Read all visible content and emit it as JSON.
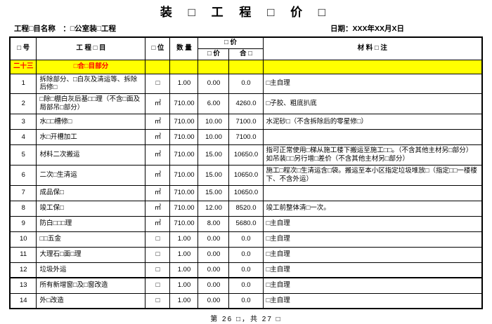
{
  "page": {
    "title": "装 □ 工 程 □ 价 □",
    "project_label": "工程□目名称　：□公室装□工程",
    "date_label": "日期：XXX年XX月X日",
    "footer": "第 26 □，共 27 □"
  },
  "colors": {
    "section_bg": "#FFFF00",
    "section_text": "#FF0000",
    "border": "#000000"
  },
  "table": {
    "headers": {
      "no": "□ 号",
      "item": "工  程  □  目",
      "unit": "□ 位",
      "qty": "数 量",
      "price_group": "□ 价",
      "unit_price": "□ 价",
      "total": "合 □",
      "remark": "材 料 □ 注"
    },
    "section": {
      "no": "二十三",
      "title": "□合□目部分"
    },
    "rows": [
      {
        "no": "1",
        "item": "拆除部分、□白灰及清运等、拆除后修□",
        "unit": "□",
        "qty": "1.00",
        "price": "0.00",
        "total": "0.0",
        "remark": "□主自理"
      },
      {
        "no": "2",
        "item": "□除□棚白灰后基□□理（不含□面及局部吊□部分）",
        "unit": "㎡",
        "qty": "710.00",
        "price": "6.00",
        "total": "4260.0",
        "remark": "□子胶、粗底扒底"
      },
      {
        "no": "3",
        "item": "水□□槽修□",
        "unit": "㎡",
        "qty": "710.00",
        "price": "10.00",
        "total": "7100.0",
        "remark": "水泥砂□（不含拆除后的零星修□）"
      },
      {
        "no": "4",
        "item": "水□开槽加工",
        "unit": "㎡",
        "qty": "710.00",
        "price": "10.00",
        "total": "7100.0",
        "remark": ""
      },
      {
        "no": "5",
        "item": "材料二次搬运",
        "unit": "㎡",
        "qty": "710.00",
        "price": "15.00",
        "total": "10650.0",
        "remark": "指可正常使用□梯从施工楼下搬运至施工□□。（不含其他主材另□部分）如吊装□□另行增□差价（不含其他主材另□部分）"
      },
      {
        "no": "6",
        "item": "二次□生清运",
        "unit": "㎡",
        "qty": "710.00",
        "price": "15.00",
        "total": "10650.0",
        "remark": "施工□程次□生清运含□袋。搬运至本小区指定垃圾堆放□（指定□□一楼楼下、不含外运）"
      },
      {
        "no": "7",
        "item": "成品保□",
        "unit": "㎡",
        "qty": "710.00",
        "price": "15.00",
        "total": "10650.0",
        "remark": ""
      },
      {
        "no": "8",
        "item": "竣工保□",
        "unit": "㎡",
        "qty": "710.00",
        "price": "12.00",
        "total": "8520.0",
        "remark": "竣工前整体清□一次。"
      },
      {
        "no": "9",
        "item": "防白□□□理",
        "unit": "㎡",
        "qty": "710.00",
        "price": "8.00",
        "total": "5680.0",
        "remark": "□主自理"
      },
      {
        "no": "10",
        "item": "□□五金",
        "unit": "□",
        "qty": "1.00",
        "price": "0.00",
        "total": "0.0",
        "remark": "□主自理"
      },
      {
        "no": "11",
        "item": "大理石□面□理",
        "unit": "□",
        "qty": "1.00",
        "price": "0.00",
        "total": "0.0",
        "remark": "□主自理"
      },
      {
        "no": "12",
        "item": "垃圾外运",
        "unit": "□",
        "qty": "1.00",
        "price": "0.00",
        "total": "0.0",
        "remark": "□主自理",
        "thick_below": true
      },
      {
        "no": "13",
        "item": "所有新增窗□及□窗改造",
        "unit": "□",
        "qty": "1.00",
        "price": "0.00",
        "total": "0.0",
        "remark": "□主自理"
      },
      {
        "no": "14",
        "item": "外□改造",
        "unit": "□",
        "qty": "1.00",
        "price": "0.00",
        "total": "0.0",
        "remark": "□主自理"
      }
    ]
  }
}
